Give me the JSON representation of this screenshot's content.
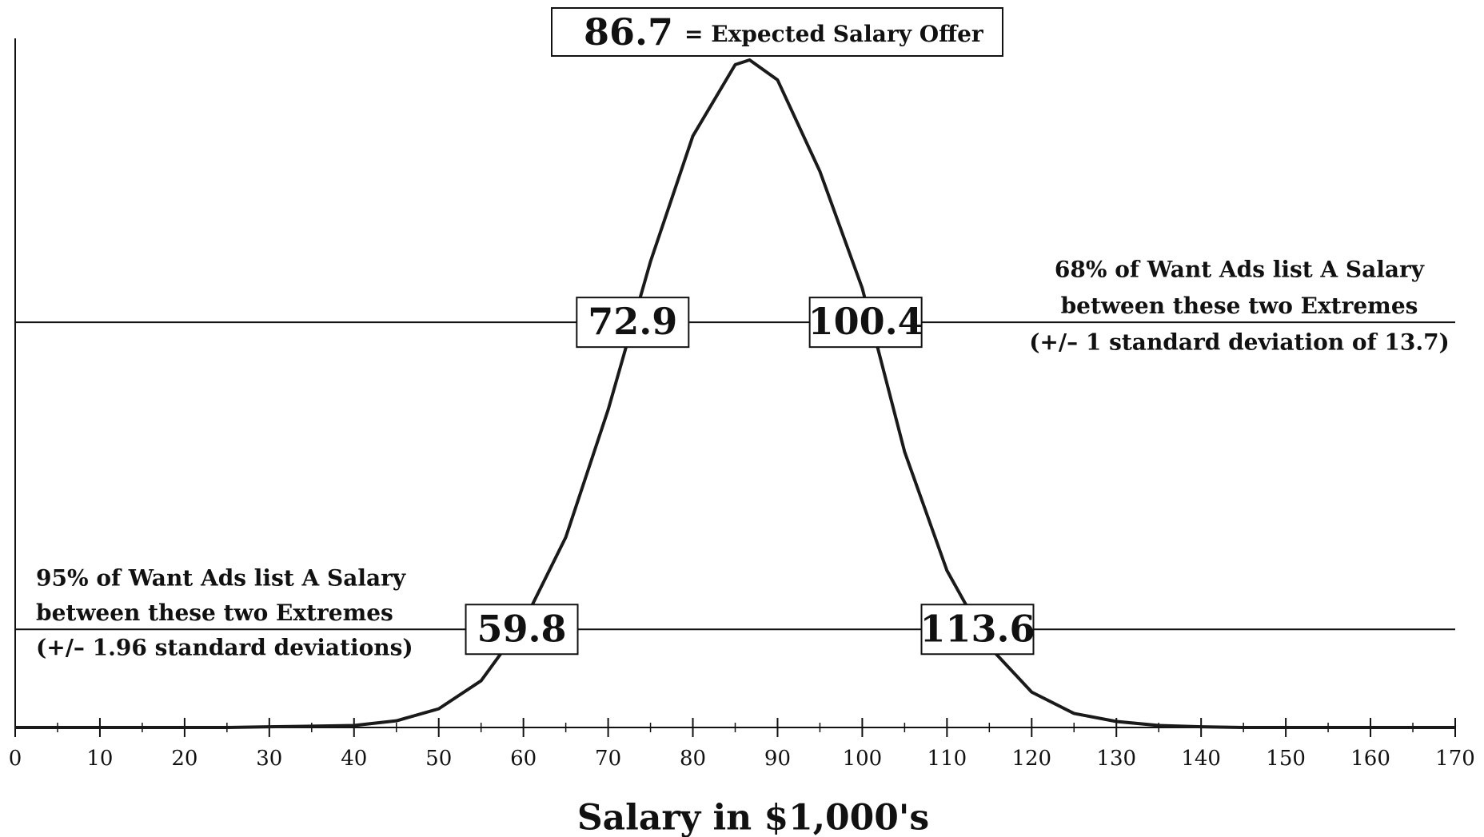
{
  "chart_data": {
    "type": "line",
    "xlabel": "Salary in $1,000's",
    "x": [
      0,
      5,
      10,
      15,
      20,
      25,
      30,
      35,
      40,
      45,
      50,
      55,
      60,
      65,
      70,
      75,
      80,
      85,
      86.7,
      90,
      95,
      100,
      105,
      110,
      115,
      120,
      125,
      130,
      135,
      140,
      145,
      150,
      155,
      160,
      165,
      170
    ],
    "series": [
      {
        "color": "#1a1a1a",
        "values": [
          0,
          0,
          0,
          0,
          0,
          0,
          0.1,
          0.2,
          0.3,
          1,
          2.8,
          7,
          15.7,
          28.5,
          47.6,
          69.8,
          88.6,
          99.3,
          100,
          97,
          83.3,
          65.8,
          41.3,
          23.5,
          12.1,
          5.3,
          2.1,
          0.9,
          0.3,
          0.1,
          0,
          0,
          0,
          0,
          0,
          0
        ]
      }
    ],
    "xlim": [
      0,
      170
    ],
    "ylim": [
      0,
      100
    ],
    "xticks": [
      0,
      10,
      20,
      30,
      40,
      50,
      60,
      70,
      80,
      90,
      100,
      110,
      120,
      130,
      140,
      150,
      160,
      170
    ],
    "xminorticks": [
      5,
      15,
      25,
      35,
      45,
      55,
      65,
      75,
      85,
      95,
      105,
      115,
      125,
      135,
      145,
      155,
      165
    ],
    "mean": {
      "value": 86.7,
      "label": "= Expected Salary Offer"
    },
    "intervals": [
      {
        "level": 60.7,
        "lower": 72.9,
        "upper": 100.4,
        "note": [
          "68% of Want Ads list A Salary",
          "between these two Extremes",
          "(+/– 1 standard deviation of  13.7)"
        ]
      },
      {
        "level": 14.7,
        "lower": 59.8,
        "upper": 113.6,
        "note": [
          "95% of Want Ads list A Salary",
          "between these two Extremes",
          "(+/– 1.96 standard deviations)"
        ]
      }
    ]
  }
}
